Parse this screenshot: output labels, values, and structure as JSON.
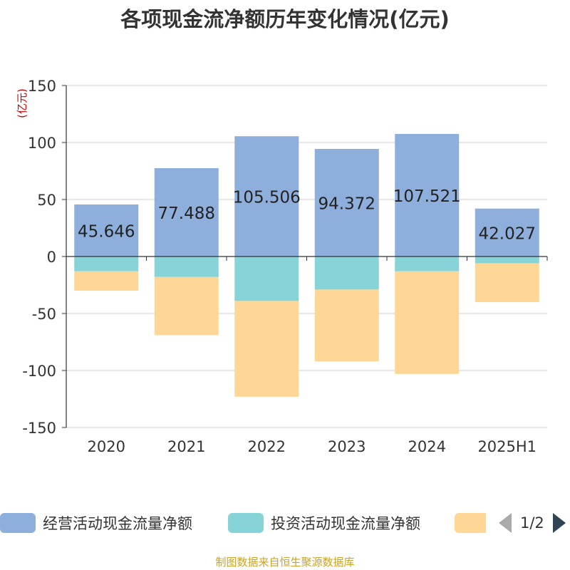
{
  "title": "各项现金流净额历年变化情况(亿元)",
  "source": "制图数据来自恒生聚源数据库",
  "colors": {
    "operating": "#8eaedb",
    "investing": "#86d4d8",
    "financing": "#fed797",
    "axis": "#333333",
    "grid": "#cccccc",
    "unit": "#cc0000",
    "source": "#c9a227"
  },
  "legend": {
    "pager": "1/2",
    "items": [
      {
        "label": "经营活动现金流量净额",
        "color": "#8eaedb"
      },
      {
        "label": "投资活动现金流量净额",
        "color": "#86d4d8"
      },
      {
        "label": "",
        "color": "#fed797"
      }
    ]
  },
  "chart_data": {
    "type": "bar",
    "stacked": true,
    "title": "各项现金流净额历年变化情况(亿元)",
    "ylabel": "(亿元)",
    "xlabel": "",
    "ylim": [
      -150,
      150
    ],
    "yticks": [
      150,
      100,
      50,
      0,
      -50,
      -100,
      -150
    ],
    "grid": true,
    "legend_position": "bottom",
    "categories": [
      "2020",
      "2021",
      "2022",
      "2023",
      "2024",
      "2025H1"
    ],
    "series": [
      {
        "name": "经营活动现金流量净额",
        "values": [
          45.646,
          77.488,
          105.506,
          94.372,
          107.521,
          42.027
        ],
        "data_labels": [
          "45.646",
          "77.488",
          "105.506",
          "94.372",
          "107.521",
          "42.027"
        ],
        "color": "#8eaedb"
      },
      {
        "values": [
          -13,
          -18,
          -39,
          -29,
          -13,
          -6
        ],
        "color": "#86d4d8"
      },
      {
        "values": [
          -17,
          -51,
          -84,
          -63,
          -90,
          -34
        ],
        "color": "#fed797"
      }
    ]
  }
}
